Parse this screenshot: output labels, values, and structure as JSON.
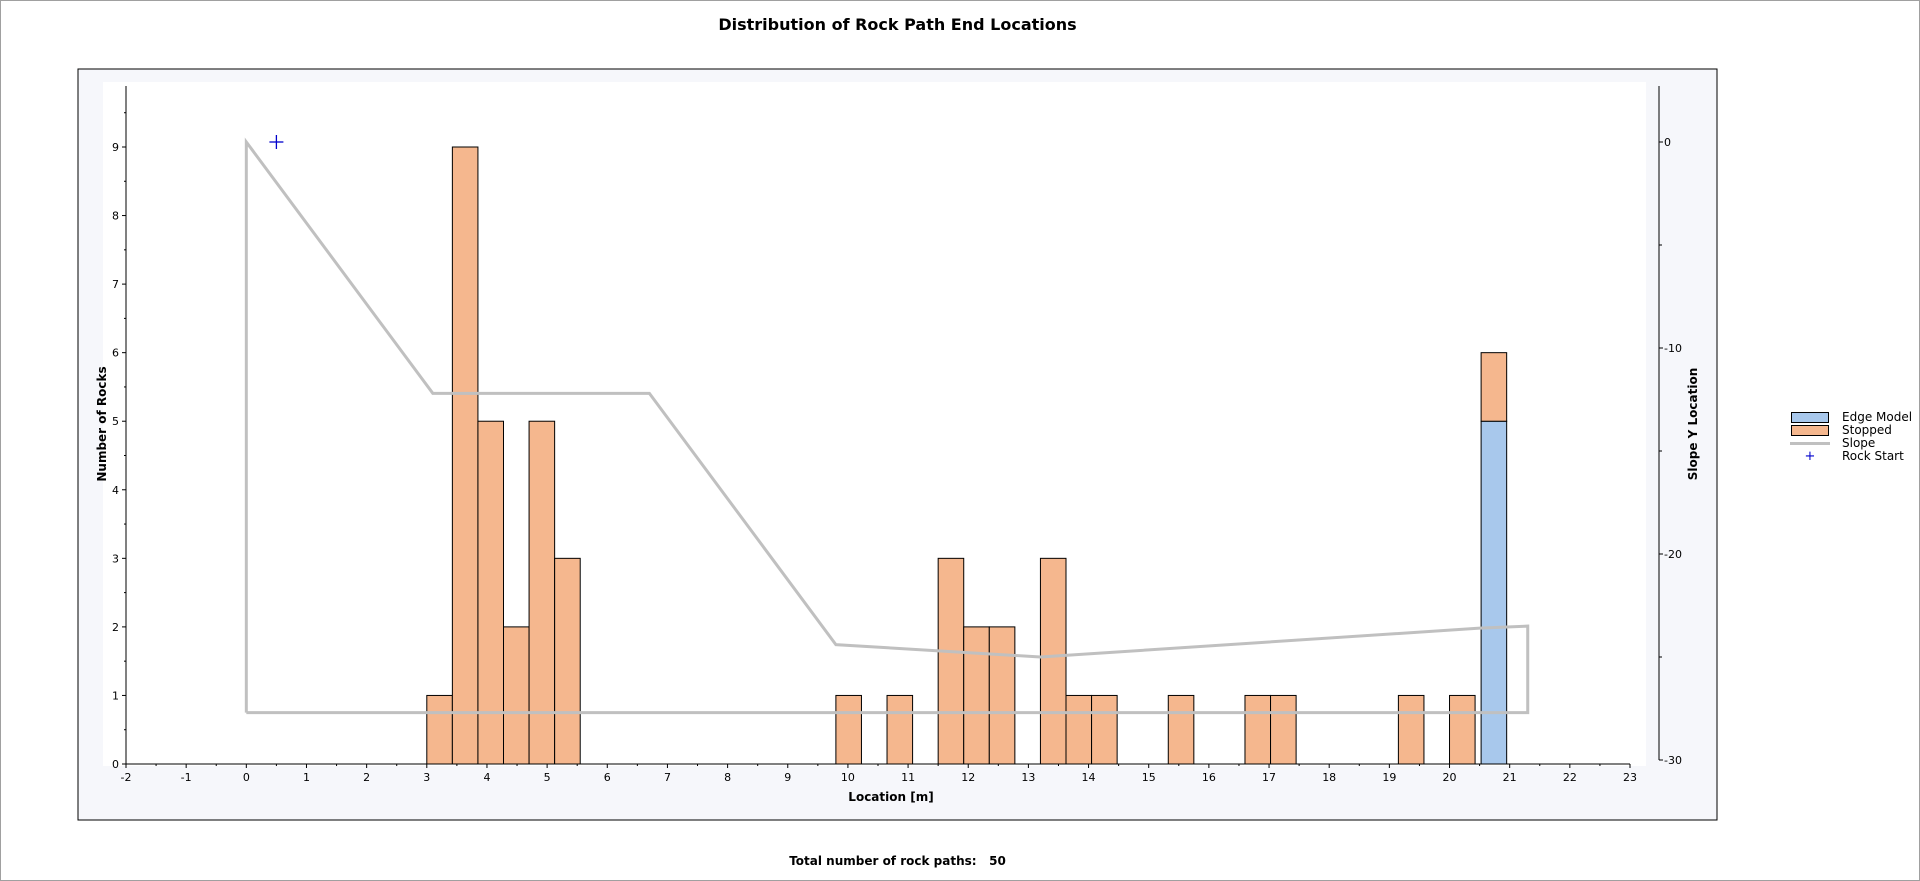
{
  "chart_data": {
    "type": "bar",
    "title": "Distribution of Rock Path End Locations",
    "xlabel": "Location [m]",
    "ylabel": "Number of Rocks",
    "y2label": "Slope Y Location",
    "xlim": [
      -2,
      23
    ],
    "ylim": [
      0,
      9
    ],
    "y2lim": [
      -30,
      0
    ],
    "x_ticks": [
      -2,
      -1,
      0,
      1,
      2,
      3,
      4,
      5,
      6,
      7,
      8,
      9,
      10,
      11,
      12,
      13,
      14,
      15,
      16,
      17,
      18,
      19,
      20,
      21,
      22,
      23
    ],
    "y_ticks": [
      0,
      1,
      2,
      3,
      4,
      5,
      6,
      7,
      8,
      9
    ],
    "y2_ticks": [
      0,
      -10,
      -20,
      -30
    ],
    "bin_width": 0.425,
    "legend_position": "right",
    "grid": false,
    "series": [
      {
        "name": "Edge Model",
        "color": "#a8c8ec",
        "bins": [
          {
            "x0": 20.525,
            "value": 5
          }
        ]
      },
      {
        "name": "Stopped",
        "color": "#f5b78e",
        "bins": [
          {
            "x0": 3.0,
            "value": 1
          },
          {
            "x0": 3.425,
            "value": 9
          },
          {
            "x0": 3.85,
            "value": 5
          },
          {
            "x0": 4.275,
            "value": 2
          },
          {
            "x0": 4.7,
            "value": 5
          },
          {
            "x0": 5.125,
            "value": 3
          },
          {
            "x0": 9.8,
            "value": 1
          },
          {
            "x0": 10.65,
            "value": 1
          },
          {
            "x0": 11.5,
            "value": 3
          },
          {
            "x0": 11.925,
            "value": 2
          },
          {
            "x0": 12.35,
            "value": 2
          },
          {
            "x0": 13.2,
            "value": 3
          },
          {
            "x0": 13.625,
            "value": 1
          },
          {
            "x0": 14.05,
            "value": 1
          },
          {
            "x0": 15.325,
            "value": 1
          },
          {
            "x0": 16.6,
            "value": 1
          },
          {
            "x0": 17.025,
            "value": 1
          },
          {
            "x0": 19.15,
            "value": 1
          },
          {
            "x0": 20.0,
            "value": 1
          },
          {
            "x0": 20.525,
            "value": 1,
            "stack_on": 5
          }
        ]
      },
      {
        "name": "Slope",
        "color": "#c0c0c0",
        "points": [
          [
            0,
            -27.7
          ],
          [
            0,
            0
          ],
          [
            3.1,
            -12.2
          ],
          [
            6.7,
            -12.2
          ],
          [
            9.8,
            -24.4
          ],
          [
            13.2,
            -25.0
          ],
          [
            20.5,
            -23.6
          ],
          [
            21.3,
            -23.5
          ],
          [
            21.3,
            -27.7
          ],
          [
            0,
            -27.7
          ]
        ]
      },
      {
        "name": "Rock Start",
        "color": "#0000cc",
        "point": [
          0.5,
          0
        ]
      }
    ],
    "total_label": "Total number of rock paths:",
    "total_value": "50"
  }
}
